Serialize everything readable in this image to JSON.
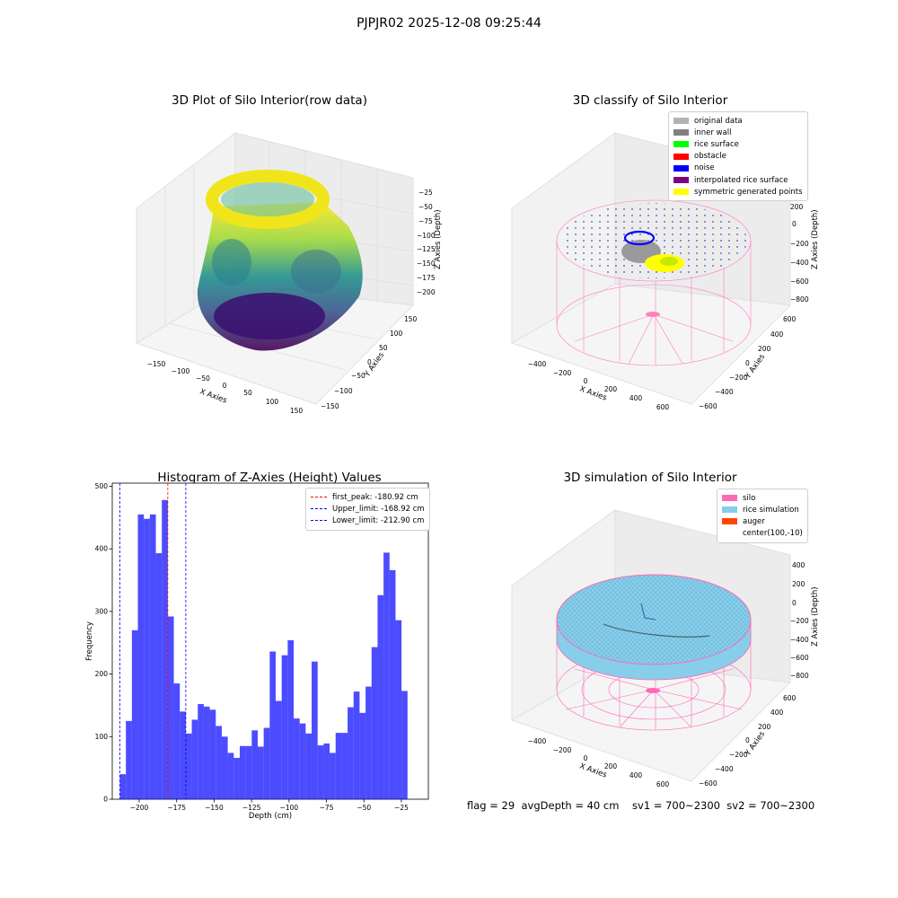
{
  "suptitle": "PJPJR02 2025-12-08 09:25:44",
  "panels": {
    "raw": {
      "title": "3D Plot of Silo Interior(row data)",
      "xlabel": "X Axies",
      "ylabel": "Y Axies",
      "zlabel": "Z Axies (Depth)",
      "xticks": [
        "−150",
        "−100",
        "−50",
        "0",
        "50",
        "100",
        "150"
      ],
      "yticks": [
        "150",
        "100",
        "50",
        "0",
        "−50",
        "−100",
        "−150"
      ],
      "zticks": [
        "−25",
        "−50",
        "−75",
        "−100",
        "−125",
        "−150",
        "−175",
        "−200"
      ]
    },
    "classify": {
      "title": "3D classify of Silo Interior",
      "xlabel": "X Axies",
      "ylabel": "Y Axies",
      "zlabel": "Z Axies (Depth)",
      "xticks": [
        "−400",
        "−200",
        "0",
        "200",
        "400",
        "600"
      ],
      "yticks": [
        "600",
        "400",
        "200",
        "0",
        "−200",
        "−400",
        "−600"
      ],
      "zticks": [
        "200",
        "0",
        "−200",
        "−400",
        "−600",
        "−800"
      ],
      "zticks_top_partial": "00",
      "legend": [
        {
          "label": "original data",
          "color": "#b3b3b3"
        },
        {
          "label": "inner wall",
          "color": "#808080"
        },
        {
          "label": "rice surface",
          "color": "#00ff00"
        },
        {
          "label": "obstacle",
          "color": "#ff0000"
        },
        {
          "label": "noise",
          "color": "#0000ff"
        },
        {
          "label": "interpolated rice surface",
          "color": "#800080"
        },
        {
          "label": "symmetric generated points",
          "color": "#ffff00"
        }
      ]
    },
    "simulation": {
      "title": "3D simulation of Silo Interior",
      "xlabel": "X Axies",
      "ylabel": "Y Axies",
      "zlabel": "Z Axies (Depth)",
      "xticks": [
        "−400",
        "−200",
        "0",
        "200",
        "400",
        "600"
      ],
      "yticks": [
        "600",
        "400",
        "200",
        "0",
        "−200",
        "−400",
        "−600"
      ],
      "zticks": [
        "400",
        "200",
        "0",
        "−200",
        "−400",
        "−600",
        "−800"
      ],
      "legend": [
        {
          "label": "silo",
          "color": "#ff69b4"
        },
        {
          "label": "rice simulation",
          "color": "#87ceeb"
        },
        {
          "label": "auger",
          "color": "#ff4500"
        },
        {
          "label": "center(100,-10)",
          "color": "#ffffff"
        }
      ],
      "footer": "flag = 29  avgDepth = 40 cm    sv1 = 700~2300  sv2 = 700~2300"
    }
  },
  "chart_data": [
    {
      "type": "bar",
      "title": "Histogram of Z-Axies (Height) Values",
      "xlabel": "Depth (cm)",
      "ylabel": "Frequency",
      "xlim": [
        -218,
        -7
      ],
      "ylim": [
        0,
        505
      ],
      "xticks": [
        -200,
        -175,
        -150,
        -125,
        -100,
        -75,
        -50,
        -25
      ],
      "xtick_labels": [
        "−200",
        "−175",
        "−150",
        "−125",
        "−100",
        "−75",
        "−50",
        "−25"
      ],
      "yticks": [
        0,
        100,
        200,
        300,
        400,
        500
      ],
      "bar_color": "#0000ff",
      "bar_alpha": 0.7,
      "bin_start": -212.9,
      "bin_width": 4.0,
      "values": [
        40,
        125,
        270,
        455,
        448,
        455,
        393,
        478,
        292,
        185,
        140,
        105,
        127,
        152,
        148,
        143,
        117,
        100,
        74,
        66,
        85,
        85,
        110,
        84,
        114,
        236,
        157,
        230,
        254,
        129,
        121,
        105,
        220,
        86,
        89,
        74,
        106,
        106,
        147,
        172,
        138,
        180,
        243,
        326,
        394,
        366,
        286,
        173
      ],
      "vlines": [
        {
          "label": "first_peak: -180.92 cm",
          "x": -180.92,
          "color": "#ff0000"
        },
        {
          "label": "Upper_limit: -168.92 cm",
          "x": -168.92,
          "color": "#0000ff"
        },
        {
          "label": "Lower_limit: -212.90 cm",
          "x": -212.9,
          "color": "#0000ff"
        }
      ]
    }
  ]
}
